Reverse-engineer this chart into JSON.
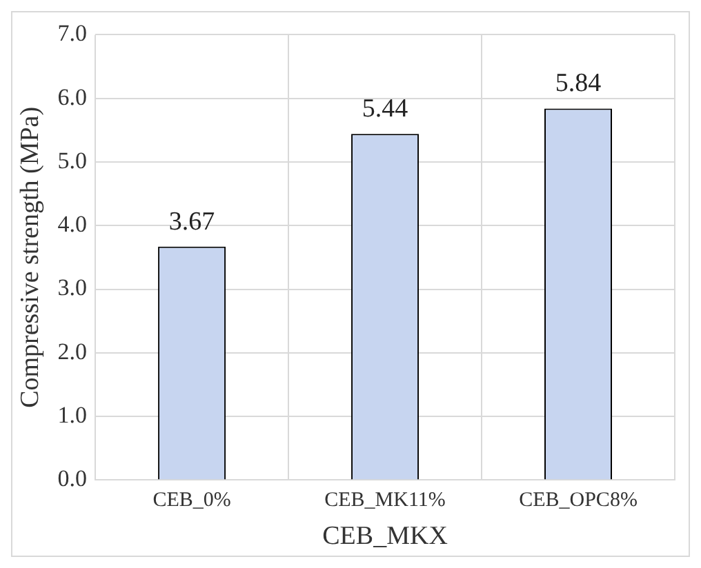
{
  "chart_data": {
    "type": "bar",
    "xlabel": "CEB_MKX",
    "ylabel": "Compressive strength (MPa)",
    "categories": [
      "CEB_0%",
      "CEB_MK11%",
      "CEB_OPC8%"
    ],
    "values": [
      3.67,
      5.44,
      5.84
    ],
    "color": "#c7d5f0",
    "ylim": [
      0,
      7
    ],
    "yticks": [
      {
        "value": 0,
        "label": "0.0"
      },
      {
        "value": 1,
        "label": "1.0"
      },
      {
        "value": 2,
        "label": "2.0"
      },
      {
        "value": 3,
        "label": "3.0"
      },
      {
        "value": 4,
        "label": "4.0"
      },
      {
        "value": 5,
        "label": "5.0"
      },
      {
        "value": 6,
        "label": "6.0"
      },
      {
        "value": 7,
        "label": "7.0"
      }
    ],
    "grid": true,
    "data_labels": true
  }
}
